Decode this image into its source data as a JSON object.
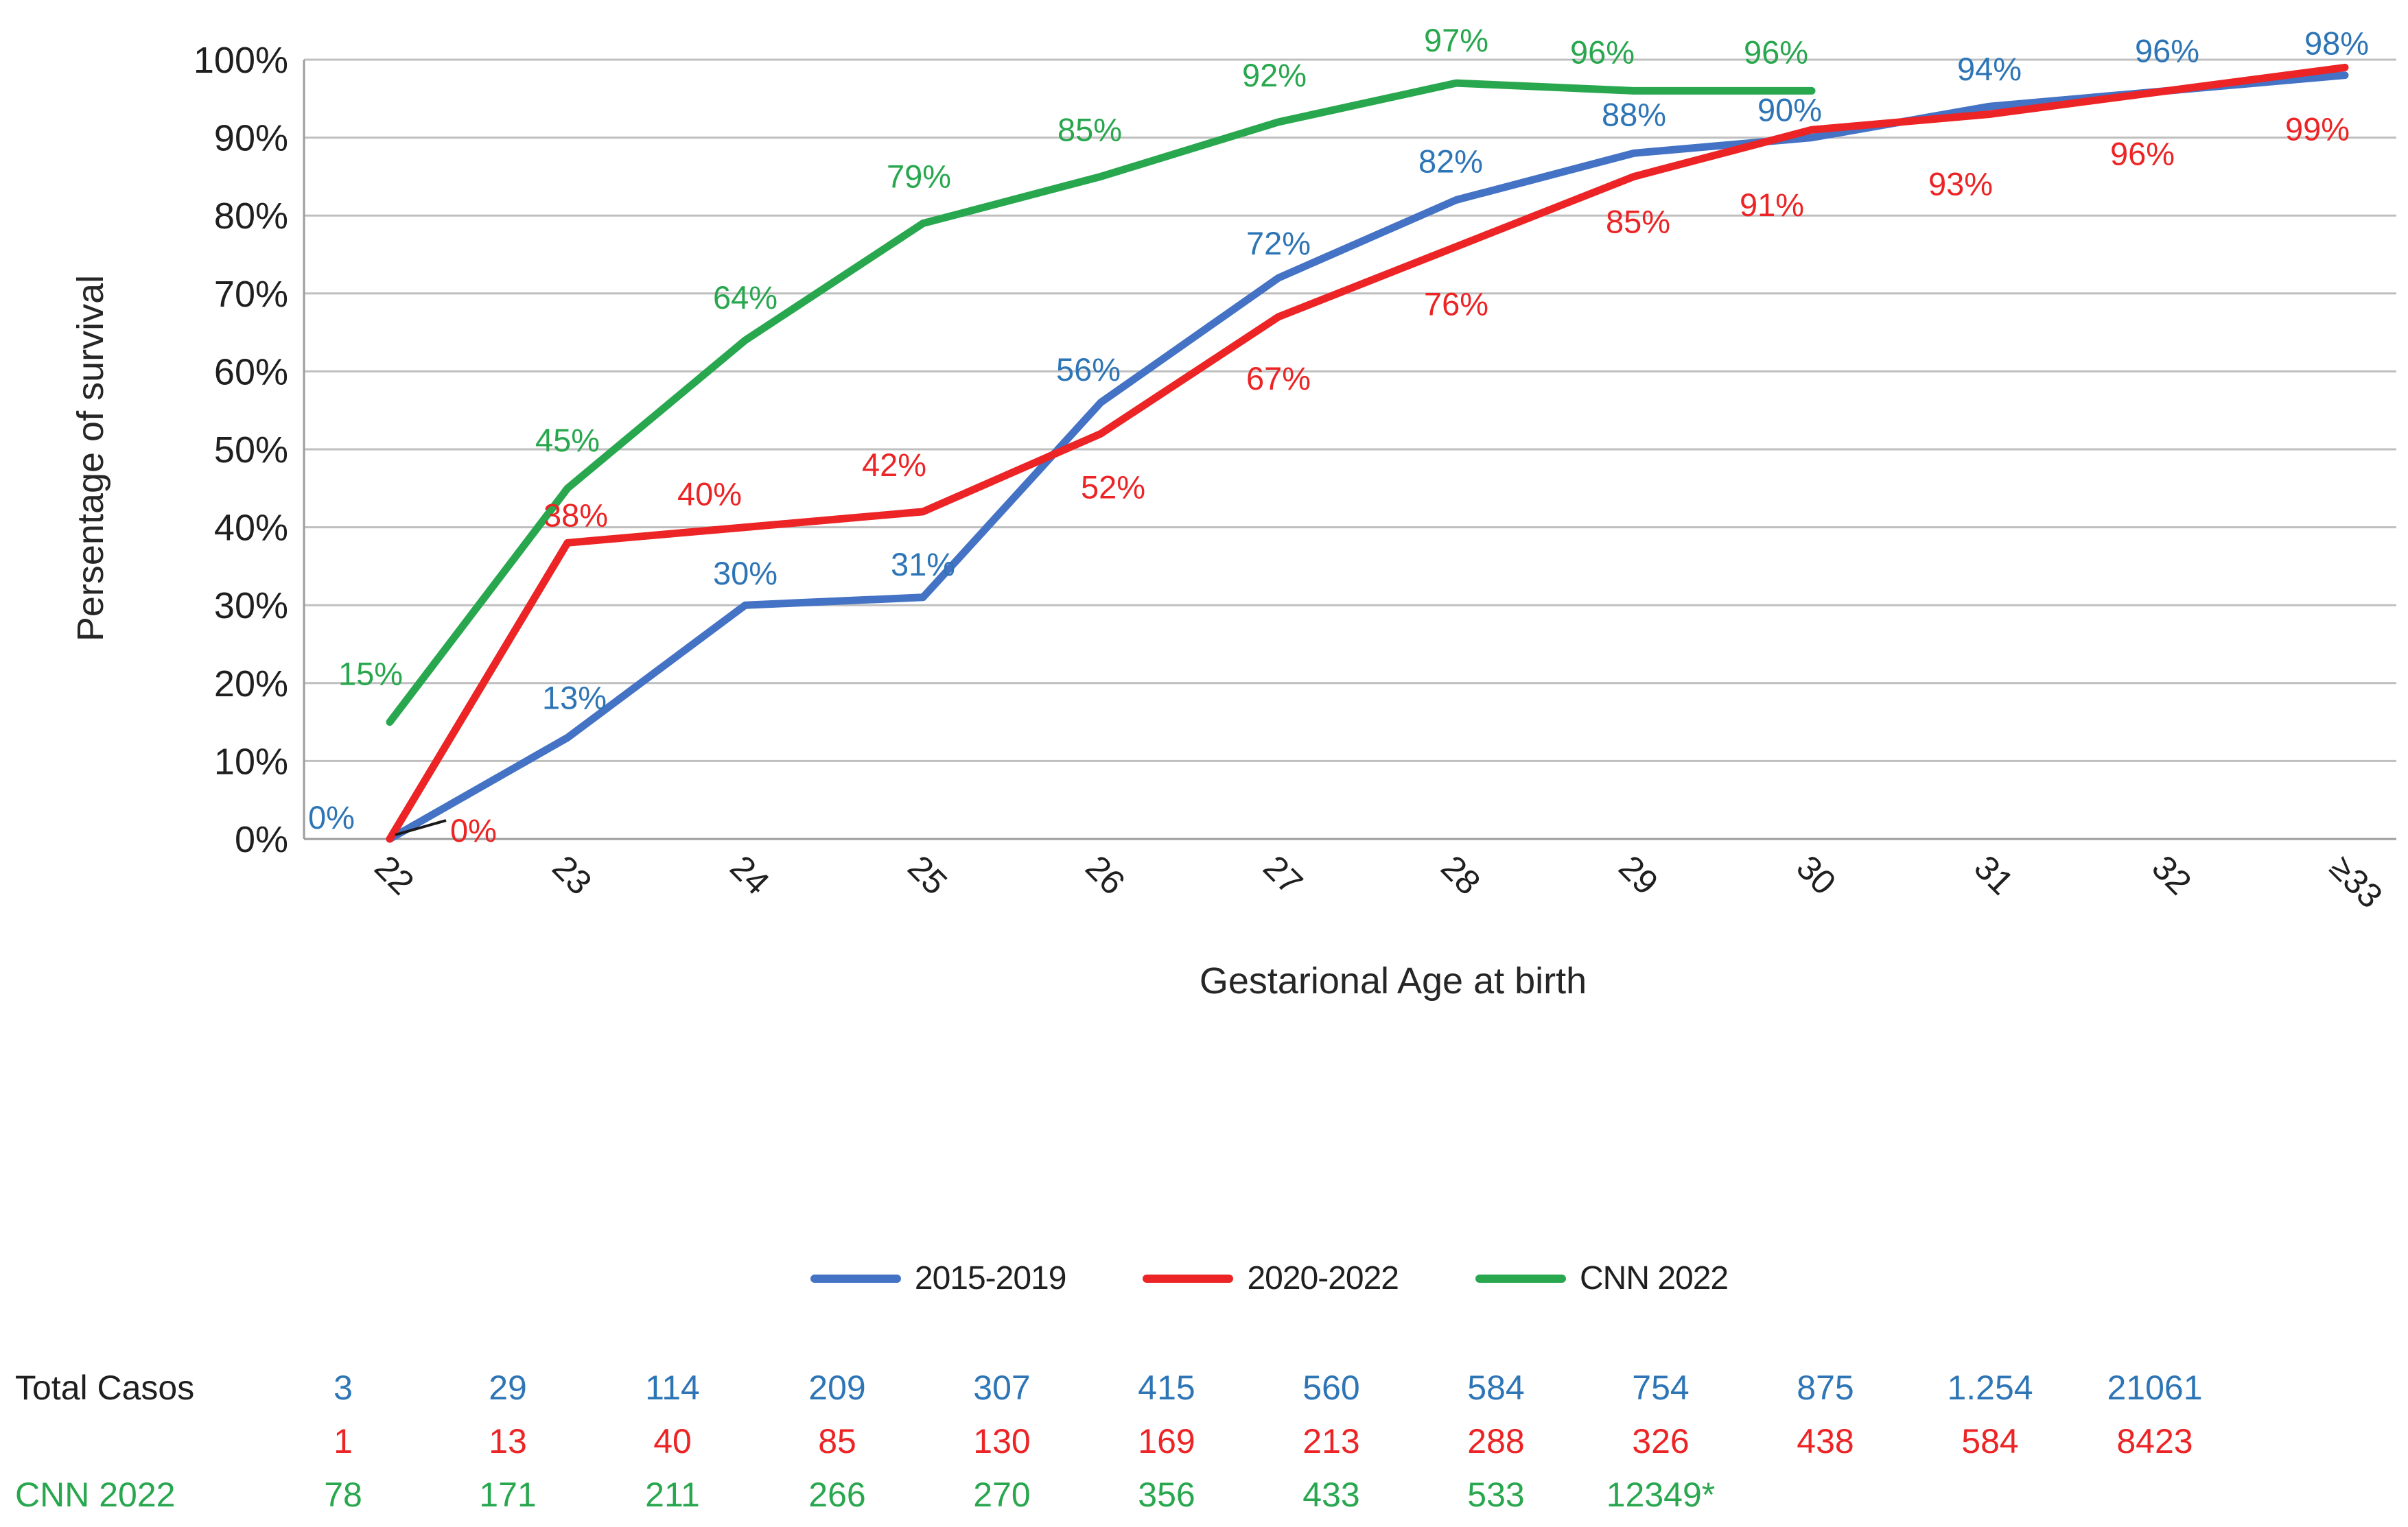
{
  "chart_data": {
    "type": "line",
    "title": "",
    "ylabel": "Persentage of survival",
    "xlabel": "Gestarional Age at birth",
    "categories": [
      "22",
      "23",
      "24",
      "25",
      "26",
      "27",
      "28",
      "29",
      "30",
      "31",
      "32",
      "≥33"
    ],
    "ylim": [
      0,
      100
    ],
    "ytick_step": 10,
    "ytick_labels": [
      "0%",
      "10%",
      "20%",
      "30%",
      "40%",
      "50%",
      "60%",
      "70%",
      "80%",
      "90%",
      "100%"
    ],
    "grid": true,
    "legend_position": "bottom-center",
    "series": [
      {
        "name": "2015-2019",
        "color": "#4472C4",
        "label_color": "#2E75B6",
        "values": [
          0,
          13,
          30,
          31,
          56,
          72,
          82,
          88,
          90,
          94,
          96,
          98
        ],
        "labels": [
          "0%",
          "13%",
          "30%",
          "31%",
          "56%",
          "72%",
          "82%",
          "88%",
          "90%",
          "94%",
          "96%",
          "98%"
        ],
        "label_offsets": [
          [
            -85,
            -15
          ],
          [
            10,
            -42
          ],
          [
            0,
            -30
          ],
          [
            0,
            -32
          ],
          [
            -18,
            -32
          ],
          [
            0,
            -34
          ],
          [
            -8,
            -40
          ],
          [
            0,
            -40
          ],
          [
            -32,
            -24
          ],
          [
            0,
            -38
          ],
          [
            0,
            -42
          ],
          [
            -12,
            -30
          ]
        ]
      },
      {
        "name": "2020-2022",
        "color": "#EC2425",
        "label_color": "#EC2425",
        "values": [
          0,
          38,
          40,
          42,
          52,
          67,
          76,
          85,
          91,
          93,
          96,
          99
        ],
        "labels": [
          "0%",
          "38%",
          "40%",
          "42%",
          "52%",
          "67%",
          "76%",
          "85%",
          "91%",
          "93%",
          "96%",
          "99%"
        ],
        "label_offsets": [
          [
            122,
            4
          ],
          [
            12,
            -24
          ],
          [
            -52,
            -32
          ],
          [
            -42,
            -52
          ],
          [
            18,
            94
          ],
          [
            0,
            106
          ],
          [
            0,
            100
          ],
          [
            6,
            82
          ],
          [
            -58,
            126
          ],
          [
            -42,
            118
          ],
          [
            -36,
            108
          ],
          [
            -40,
            106
          ]
        ],
        "first_label_leader_line": true
      },
      {
        "name": "CNN 2022",
        "color": "#28A74E",
        "label_color": "#28A74E",
        "values": [
          15,
          45,
          64,
          79,
          85,
          92,
          97,
          96,
          96
        ],
        "labels": [
          "15%",
          "45%",
          "64%",
          "79%",
          "85%",
          "92%",
          "97%",
          "96%",
          "96%"
        ],
        "label_offsets": [
          [
            -28,
            -54
          ],
          [
            0,
            -54
          ],
          [
            0,
            -46
          ],
          [
            -6,
            -52
          ],
          [
            -16,
            -52
          ],
          [
            -6,
            -52
          ],
          [
            0,
            -46
          ],
          [
            -46,
            -40
          ],
          [
            -52,
            -40
          ]
        ]
      }
    ]
  },
  "table": {
    "rows": [
      {
        "label": "Total Casos",
        "label_color": "#1f1f1f",
        "value_color": "#2E75B6",
        "values": [
          "3",
          "29",
          "114",
          "209",
          "307",
          "415",
          "560",
          "584",
          "754",
          "875",
          "1.254",
          "21061"
        ]
      },
      {
        "label": "",
        "label_color": "#1f1f1f",
        "value_color": "#EC2425",
        "values": [
          "1",
          "13",
          "40",
          "85",
          "130",
          "169",
          "213",
          "288",
          "326",
          "438",
          "584",
          "8423"
        ]
      },
      {
        "label": "CNN 2022",
        "label_color": "#28A74E",
        "value_color": "#28A74E",
        "values": [
          "78",
          "171",
          "211",
          "266",
          "270",
          "356",
          "433",
          "533",
          "12349*",
          "",
          "",
          ""
        ]
      }
    ]
  },
  "colors": {
    "grid": "#BFBFBF",
    "axis": "#9C9C9C",
    "tick_text": "#1f1f1f",
    "axis_title_text": "#262626",
    "leader_line": "#1a1a1a"
  }
}
